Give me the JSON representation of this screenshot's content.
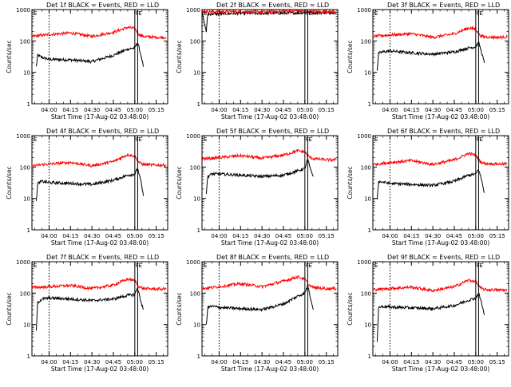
{
  "figure": {
    "background": "#ffffff",
    "events_color": "#000000",
    "lld_color": "#ff0000"
  },
  "chart_data": [
    {
      "type": "line",
      "title": "Det 1f BLACK = Events, RED = LLD",
      "xlabel": "Start Time (17-Aug-02 03:48:00)",
      "ylabel": "Counts/sec",
      "yscale": "log",
      "ylim": [
        1,
        1000
      ],
      "xlim": [
        "03:48",
        "05:23"
      ],
      "x_tick_labels": [
        "04:00",
        "04:15",
        "04:30",
        "04:45",
        "05:00",
        "05:15"
      ],
      "y_tick_labels": [
        "1",
        "10",
        "100",
        "1000"
      ],
      "markers": [
        {
          "x": "04:00",
          "style": "dotted",
          "label": ""
        },
        {
          "x": "05:00",
          "style": "solid",
          "label": "F"
        },
        {
          "x": "05:02",
          "style": "solid",
          "label": "E"
        }
      ],
      "grid": false,
      "series": [
        {
          "name": "Events",
          "color": "#000000",
          "x": [
            "03:51",
            "03:52",
            "03:55",
            "04:00",
            "04:15",
            "04:30",
            "04:45",
            "04:55",
            "05:00",
            "05:02",
            "05:04",
            "05:06"
          ],
          "y": [
            15,
            35,
            30,
            26,
            25,
            22,
            35,
            55,
            60,
            90,
            40,
            15
          ]
        },
        {
          "name": "LLD",
          "color": "#ff0000",
          "x": [
            "03:48",
            "04:00",
            "04:15",
            "04:30",
            "04:45",
            "04:55",
            "05:00",
            "05:03",
            "05:06",
            "05:15",
            "05:22"
          ],
          "y": [
            140,
            160,
            180,
            140,
            190,
            270,
            250,
            160,
            140,
            130,
            130
          ]
        }
      ]
    },
    {
      "type": "line",
      "title": "Det 2f BLACK = Events, RED = LLD",
      "xlabel": "Start Time (17-Aug-02 03:48:00)",
      "ylabel": "Counts/sec",
      "yscale": "log",
      "ylim": [
        1,
        1000
      ],
      "xlim": [
        "03:48",
        "05:23"
      ],
      "x_tick_labels": [
        "04:00",
        "04:15",
        "04:30",
        "04:45",
        "05:00",
        "05:15"
      ],
      "y_tick_labels": [
        "1",
        "10",
        "100",
        "1000"
      ],
      "markers": [
        {
          "x": "04:00",
          "style": "dotted",
          "label": ""
        },
        {
          "x": "05:00",
          "style": "solid",
          "label": "F"
        },
        {
          "x": "05:02",
          "style": "solid",
          "label": "E"
        }
      ],
      "grid": false,
      "series": [
        {
          "name": "Events",
          "color": "#000000",
          "x": [
            "03:48",
            "03:51",
            "03:52",
            "04:00",
            "04:15",
            "04:30",
            "04:45",
            "05:00",
            "05:10",
            "05:22"
          ],
          "y": [
            800,
            200,
            720,
            730,
            760,
            760,
            770,
            800,
            800,
            800
          ]
        },
        {
          "name": "LLD",
          "color": "#ff0000",
          "x": [
            "03:48",
            "04:00",
            "04:15",
            "04:30",
            "04:45",
            "04:55",
            "05:00",
            "05:10",
            "05:22"
          ],
          "y": [
            850,
            860,
            860,
            840,
            880,
            920,
            880,
            850,
            850
          ]
        }
      ]
    },
    {
      "type": "line",
      "title": "Det 3f BLACK = Events, RED = LLD",
      "xlabel": "Start Time (17-Aug-02 03:48:00)",
      "ylabel": "Counts/sec",
      "yscale": "log",
      "ylim": [
        1,
        1000
      ],
      "xlim": [
        "03:48",
        "05:23"
      ],
      "x_tick_labels": [
        "04:00",
        "04:15",
        "04:30",
        "04:45",
        "05:00",
        "05:15"
      ],
      "y_tick_labels": [
        "1",
        "10",
        "100",
        "1000"
      ],
      "markers": [
        {
          "x": "04:00",
          "style": "dotted",
          "label": ""
        },
        {
          "x": "05:00",
          "style": "solid",
          "label": "F"
        },
        {
          "x": "05:02",
          "style": "solid",
          "label": "E"
        }
      ],
      "grid": false,
      "series": [
        {
          "name": "Events",
          "color": "#000000",
          "x": [
            "03:51",
            "03:52",
            "03:55",
            "04:00",
            "04:15",
            "04:30",
            "04:45",
            "04:55",
            "05:00",
            "05:02",
            "05:04",
            "05:06"
          ],
          "y": [
            12,
            40,
            45,
            48,
            42,
            38,
            45,
            60,
            65,
            90,
            45,
            20
          ]
        },
        {
          "name": "LLD",
          "color": "#ff0000",
          "x": [
            "03:48",
            "04:00",
            "04:15",
            "04:30",
            "04:45",
            "04:55",
            "05:00",
            "05:03",
            "05:06",
            "05:15",
            "05:22"
          ],
          "y": [
            140,
            155,
            170,
            130,
            170,
            260,
            240,
            150,
            135,
            130,
            135
          ]
        }
      ]
    },
    {
      "type": "line",
      "title": "Det 4f BLACK = Events, RED = LLD",
      "xlabel": "Start Time (17-Aug-02 03:48:00)",
      "ylabel": "Counts/sec",
      "yscale": "log",
      "ylim": [
        1,
        1000
      ],
      "xlim": [
        "03:48",
        "05:23"
      ],
      "x_tick_labels": [
        "04:00",
        "04:15",
        "04:30",
        "04:45",
        "05:00",
        "05:15"
      ],
      "y_tick_labels": [
        "1",
        "10",
        "100",
        "1000"
      ],
      "markers": [
        {
          "x": "04:00",
          "style": "dotted",
          "label": ""
        },
        {
          "x": "05:00",
          "style": "solid",
          "label": "F"
        },
        {
          "x": "05:02",
          "style": "solid",
          "label": "E"
        }
      ],
      "grid": false,
      "series": [
        {
          "name": "Events",
          "color": "#000000",
          "x": [
            "03:51",
            "03:52",
            "03:55",
            "04:00",
            "04:15",
            "04:30",
            "04:45",
            "04:55",
            "05:00",
            "05:02",
            "05:04",
            "05:06"
          ],
          "y": [
            8,
            30,
            35,
            32,
            30,
            28,
            38,
            55,
            60,
            90,
            40,
            12
          ]
        },
        {
          "name": "LLD",
          "color": "#ff0000",
          "x": [
            "03:48",
            "04:00",
            "04:15",
            "04:30",
            "04:45",
            "04:55",
            "05:00",
            "05:03",
            "05:06",
            "05:15",
            "05:22"
          ],
          "y": [
            110,
            125,
            140,
            110,
            150,
            250,
            220,
            140,
            120,
            115,
            115
          ]
        }
      ]
    },
    {
      "type": "line",
      "title": "Det 5f BLACK = Events, RED = LLD",
      "xlabel": "Start Time (17-Aug-02 03:48:00)",
      "ylabel": "Counts/sec",
      "yscale": "log",
      "ylim": [
        1,
        1000
      ],
      "xlim": [
        "03:48",
        "05:23"
      ],
      "x_tick_labels": [
        "04:00",
        "04:15",
        "04:30",
        "04:45",
        "05:00",
        "05:15"
      ],
      "y_tick_labels": [
        "1",
        "10",
        "100",
        "1000"
      ],
      "markers": [
        {
          "x": "04:00",
          "style": "dotted",
          "label": ""
        },
        {
          "x": "05:00",
          "style": "solid",
          "label": "F"
        },
        {
          "x": "05:02",
          "style": "solid",
          "label": "E"
        }
      ],
      "grid": false,
      "series": [
        {
          "name": "Events",
          "color": "#000000",
          "x": [
            "03:51",
            "03:52",
            "03:55",
            "04:00",
            "04:15",
            "04:30",
            "04:45",
            "04:55",
            "05:00",
            "05:02",
            "05:04",
            "05:06"
          ],
          "y": [
            15,
            50,
            60,
            60,
            55,
            50,
            55,
            75,
            90,
            180,
            80,
            50
          ]
        },
        {
          "name": "LLD",
          "color": "#ff0000",
          "x": [
            "03:48",
            "04:00",
            "04:15",
            "04:30",
            "04:45",
            "04:55",
            "05:00",
            "05:03",
            "05:06",
            "05:15",
            "05:22"
          ],
          "y": [
            180,
            200,
            230,
            190,
            240,
            330,
            300,
            210,
            185,
            170,
            170
          ]
        }
      ]
    },
    {
      "type": "line",
      "title": "Det 6f BLACK = Events, RED = LLD",
      "xlabel": "Start Time (17-Aug-02 03:48:00)",
      "ylabel": "Counts/sec",
      "yscale": "log",
      "ylim": [
        1,
        1000
      ],
      "xlim": [
        "03:48",
        "05:23"
      ],
      "x_tick_labels": [
        "04:00",
        "04:15",
        "04:30",
        "04:45",
        "05:00",
        "05:15"
      ],
      "y_tick_labels": [
        "1",
        "10",
        "100",
        "1000"
      ],
      "markers": [
        {
          "x": "04:00",
          "style": "dotted",
          "label": ""
        },
        {
          "x": "05:00",
          "style": "solid",
          "label": "F"
        },
        {
          "x": "05:02",
          "style": "solid",
          "label": "E"
        }
      ],
      "grid": false,
      "series": [
        {
          "name": "Events",
          "color": "#000000",
          "x": [
            "03:51",
            "03:52",
            "03:55",
            "04:00",
            "04:15",
            "04:30",
            "04:45",
            "04:55",
            "05:00",
            "05:02",
            "05:04",
            "05:06"
          ],
          "y": [
            10,
            35,
            33,
            30,
            28,
            26,
            35,
            55,
            60,
            85,
            40,
            15
          ]
        },
        {
          "name": "LLD",
          "color": "#ff0000",
          "x": [
            "03:48",
            "04:00",
            "04:15",
            "04:30",
            "04:45",
            "04:55",
            "05:00",
            "05:03",
            "05:06",
            "05:15",
            "05:22"
          ],
          "y": [
            120,
            140,
            160,
            120,
            170,
            270,
            240,
            150,
            130,
            125,
            125
          ]
        }
      ]
    },
    {
      "type": "line",
      "title": "Det 7f BLACK = Events, RED = LLD",
      "xlabel": "Start Time (17-Aug-02 03:48:00)",
      "ylabel": "Counts/sec",
      "yscale": "log",
      "ylim": [
        1,
        1000
      ],
      "xlim": [
        "03:48",
        "05:23"
      ],
      "x_tick_labels": [
        "04:00",
        "04:15",
        "04:30",
        "04:45",
        "05:00",
        "05:15"
      ],
      "y_tick_labels": [
        "1",
        "10",
        "100",
        "1000"
      ],
      "markers": [
        {
          "x": "04:00",
          "style": "dotted",
          "label": ""
        },
        {
          "x": "05:00",
          "style": "solid",
          "label": "F"
        },
        {
          "x": "05:02",
          "style": "solid",
          "label": "E"
        }
      ],
      "grid": false,
      "series": [
        {
          "name": "Events",
          "color": "#000000",
          "x": [
            "03:51",
            "03:52",
            "03:55",
            "04:00",
            "04:15",
            "04:30",
            "04:45",
            "04:55",
            "05:00",
            "05:02",
            "05:04",
            "05:06"
          ],
          "y": [
            6,
            50,
            65,
            70,
            65,
            58,
            65,
            85,
            90,
            150,
            60,
            30
          ]
        },
        {
          "name": "LLD",
          "color": "#ff0000",
          "x": [
            "03:48",
            "04:00",
            "04:15",
            "04:30",
            "04:45",
            "04:55",
            "05:00",
            "05:03",
            "05:06",
            "05:15",
            "05:22"
          ],
          "y": [
            150,
            160,
            175,
            140,
            180,
            280,
            250,
            160,
            140,
            135,
            135
          ]
        }
      ]
    },
    {
      "type": "line",
      "title": "Det 8f BLACK = Events, RED = LLD",
      "xlabel": "Start Time (17-Aug-02 03:48:00)",
      "ylabel": "Counts/sec",
      "yscale": "log",
      "ylim": [
        1,
        1000
      ],
      "xlim": [
        "03:48",
        "05:23"
      ],
      "x_tick_labels": [
        "04:00",
        "04:15",
        "04:30",
        "04:45",
        "05:00",
        "05:15"
      ],
      "y_tick_labels": [
        "1",
        "10",
        "100",
        "1000"
      ],
      "markers": [
        {
          "x": "04:00",
          "style": "dotted",
          "label": ""
        },
        {
          "x": "05:00",
          "style": "solid",
          "label": "F"
        },
        {
          "x": "05:02",
          "style": "solid",
          "label": "E"
        }
      ],
      "grid": false,
      "series": [
        {
          "name": "Events",
          "color": "#000000",
          "x": [
            "03:51",
            "03:52",
            "03:55",
            "04:00",
            "04:15",
            "04:30",
            "04:45",
            "04:55",
            "05:00",
            "05:02",
            "05:04",
            "05:06"
          ],
          "y": [
            10,
            35,
            38,
            35,
            32,
            30,
            45,
            80,
            100,
            180,
            70,
            30
          ]
        },
        {
          "name": "LLD",
          "color": "#ff0000",
          "x": [
            "03:48",
            "04:00",
            "04:15",
            "04:30",
            "04:45",
            "04:55",
            "05:00",
            "05:03",
            "05:06",
            "05:15",
            "05:22"
          ],
          "y": [
            140,
            160,
            200,
            160,
            240,
            330,
            280,
            180,
            150,
            140,
            140
          ]
        }
      ]
    },
    {
      "type": "line",
      "title": "Det 9f BLACK = Events, RED = LLD",
      "xlabel": "Start Time (17-Aug-02 03:48:00)",
      "ylabel": "Counts/sec",
      "yscale": "log",
      "ylim": [
        1,
        1000
      ],
      "xlim": [
        "03:48",
        "05:23"
      ],
      "x_tick_labels": [
        "04:00",
        "04:15",
        "04:30",
        "04:45",
        "05:00",
        "05:15"
      ],
      "y_tick_labels": [
        "1",
        "10",
        "100",
        "1000"
      ],
      "markers": [
        {
          "x": "04:00",
          "style": "dotted",
          "label": ""
        },
        {
          "x": "05:00",
          "style": "solid",
          "label": "F"
        },
        {
          "x": "05:02",
          "style": "solid",
          "label": "E"
        }
      ],
      "grid": false,
      "series": [
        {
          "name": "Events",
          "color": "#000000",
          "x": [
            "03:51",
            "03:52",
            "03:55",
            "04:00",
            "04:15",
            "04:30",
            "04:45",
            "04:55",
            "05:00",
            "05:02",
            "05:04",
            "05:06"
          ],
          "y": [
            3,
            35,
            38,
            36,
            34,
            32,
            40,
            60,
            70,
            100,
            50,
            20
          ]
        },
        {
          "name": "LLD",
          "color": "#ff0000",
          "x": [
            "03:48",
            "04:00",
            "04:15",
            "04:30",
            "04:45",
            "04:55",
            "05:00",
            "05:03",
            "05:06",
            "05:15",
            "05:22"
          ],
          "y": [
            130,
            140,
            155,
            120,
            160,
            260,
            230,
            150,
            130,
            125,
            125
          ]
        }
      ]
    }
  ]
}
